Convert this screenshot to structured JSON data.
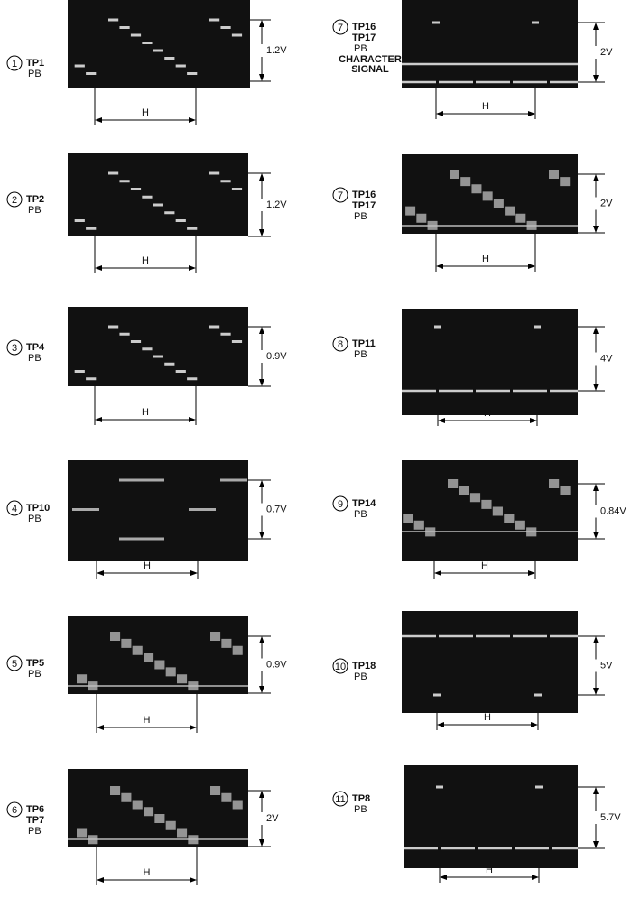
{
  "panels": [
    {
      "number": "1",
      "lines": [
        "TP1"
      ],
      "mode": "PB",
      "amplitude": "1.2V",
      "period": "H"
    },
    {
      "number": "2",
      "lines": [
        "TP2"
      ],
      "mode": "PB",
      "amplitude": "1.2V",
      "period": "H"
    },
    {
      "number": "3",
      "lines": [
        "TP4"
      ],
      "mode": "PB",
      "amplitude": "0.9V",
      "period": "H"
    },
    {
      "number": "4",
      "lines": [
        "TP10"
      ],
      "mode": "PB",
      "amplitude": "0.7V",
      "period": "H"
    },
    {
      "number": "5",
      "lines": [
        "TP5"
      ],
      "mode": "PB",
      "amplitude": "0.9V",
      "period": "H"
    },
    {
      "number": "6",
      "lines": [
        "TP6",
        "TP7"
      ],
      "mode": "PB",
      "amplitude": "2V",
      "period": "H"
    },
    {
      "number": "7",
      "lines": [
        "TP16",
        "TP17"
      ],
      "mode": "PB",
      "note": [
        "CHARACTER",
        "SIGNAL"
      ],
      "amplitude": "2V",
      "period": "H"
    },
    {
      "number": "7",
      "lines": [
        "TP16",
        "TP17"
      ],
      "mode": "PB",
      "amplitude": "2V",
      "period": "H"
    },
    {
      "number": "8",
      "lines": [
        "TP11"
      ],
      "mode": "PB",
      "amplitude": "4V",
      "period": "H"
    },
    {
      "number": "9",
      "lines": [
        "TP14"
      ],
      "mode": "PB",
      "amplitude": "0.84V",
      "period": "H"
    },
    {
      "number": "10",
      "lines": [
        "TP18"
      ],
      "mode": "PB",
      "amplitude": "5V",
      "period": "H"
    },
    {
      "number": "11",
      "lines": [
        "TP8"
      ],
      "mode": "PB",
      "amplitude": "5.7V",
      "period": "H"
    }
  ]
}
